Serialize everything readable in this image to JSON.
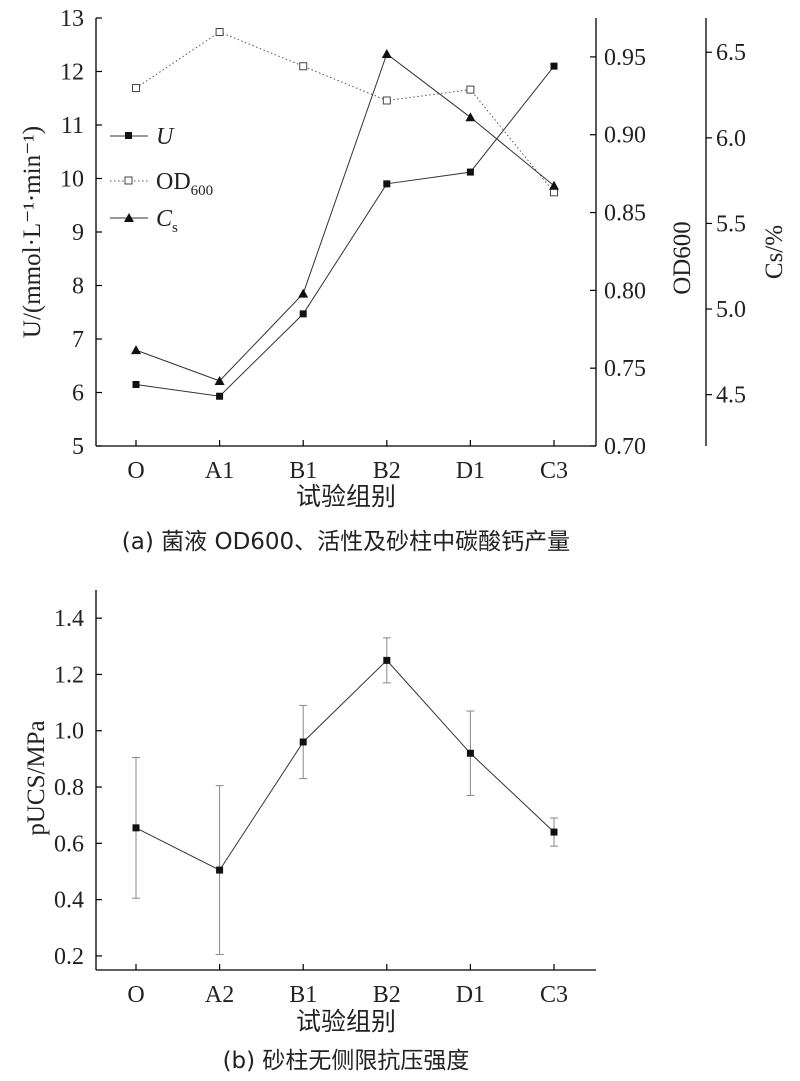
{
  "chart_data": [
    {
      "type": "line",
      "caption": "(a) 菌液 OD600、活性及砂柱中碳酸钙产量",
      "xlabel": "试验组别",
      "categories": [
        "O",
        "A1",
        "B1",
        "B2",
        "D1",
        "C3"
      ],
      "axes": {
        "left": {
          "label": "U/(mmol·L⁻¹·min⁻¹)",
          "ylim": [
            5,
            13
          ],
          "ticks": [
            "5",
            "6",
            "7",
            "8",
            "9",
            "10",
            "11",
            "12",
            "13"
          ]
        },
        "right1": {
          "label": "OD600",
          "ylim": [
            0.7,
            0.975
          ],
          "ticks": [
            "0.70",
            "0.75",
            "0.80",
            "0.85",
            "0.90",
            "0.95"
          ]
        },
        "right2": {
          "label": "Cs/%",
          "ylim": [
            4.2,
            6.7
          ],
          "ticks": [
            "4.5",
            "5.0",
            "5.5",
            "6.0",
            "6.5"
          ]
        }
      },
      "legend": {
        "position": "left",
        "labels": {
          "u": "U",
          "od": "OD",
          "od_sub": "600",
          "cs": "C",
          "cs_sub": "s"
        }
      },
      "series": [
        {
          "name": "U",
          "axis": "left",
          "marker": "filled-square",
          "line": "solid",
          "values": [
            6.15,
            5.93,
            7.47,
            9.9,
            10.12,
            12.1
          ]
        },
        {
          "name": "OD600",
          "axis": "right1",
          "marker": "open-square",
          "line": "dotted",
          "values": [
            0.93,
            0.966,
            0.944,
            0.922,
            0.929,
            0.863
          ]
        },
        {
          "name": "Cs",
          "axis": "right2",
          "marker": "filled-triangle",
          "line": "solid",
          "values": [
            4.76,
            4.58,
            5.09,
            6.49,
            6.12,
            5.72
          ]
        }
      ]
    },
    {
      "type": "line",
      "caption": "(b) 砂柱无侧限抗压强度",
      "xlabel": "试验组别",
      "ylabel": "pUCS/MPa",
      "categories": [
        "O",
        "A2",
        "B1",
        "B2",
        "D1",
        "C3"
      ],
      "ylim": [
        0.15,
        1.5
      ],
      "yticks": [
        "0.2",
        "0.4",
        "0.6",
        "0.8",
        "1.0",
        "1.2",
        "1.4"
      ],
      "series": [
        {
          "name": "pUCS",
          "values": [
            0.655,
            0.505,
            0.96,
            1.25,
            0.92,
            0.64
          ],
          "error": [
            0.25,
            0.3,
            0.13,
            0.08,
            0.15,
            0.05
          ]
        }
      ]
    }
  ]
}
